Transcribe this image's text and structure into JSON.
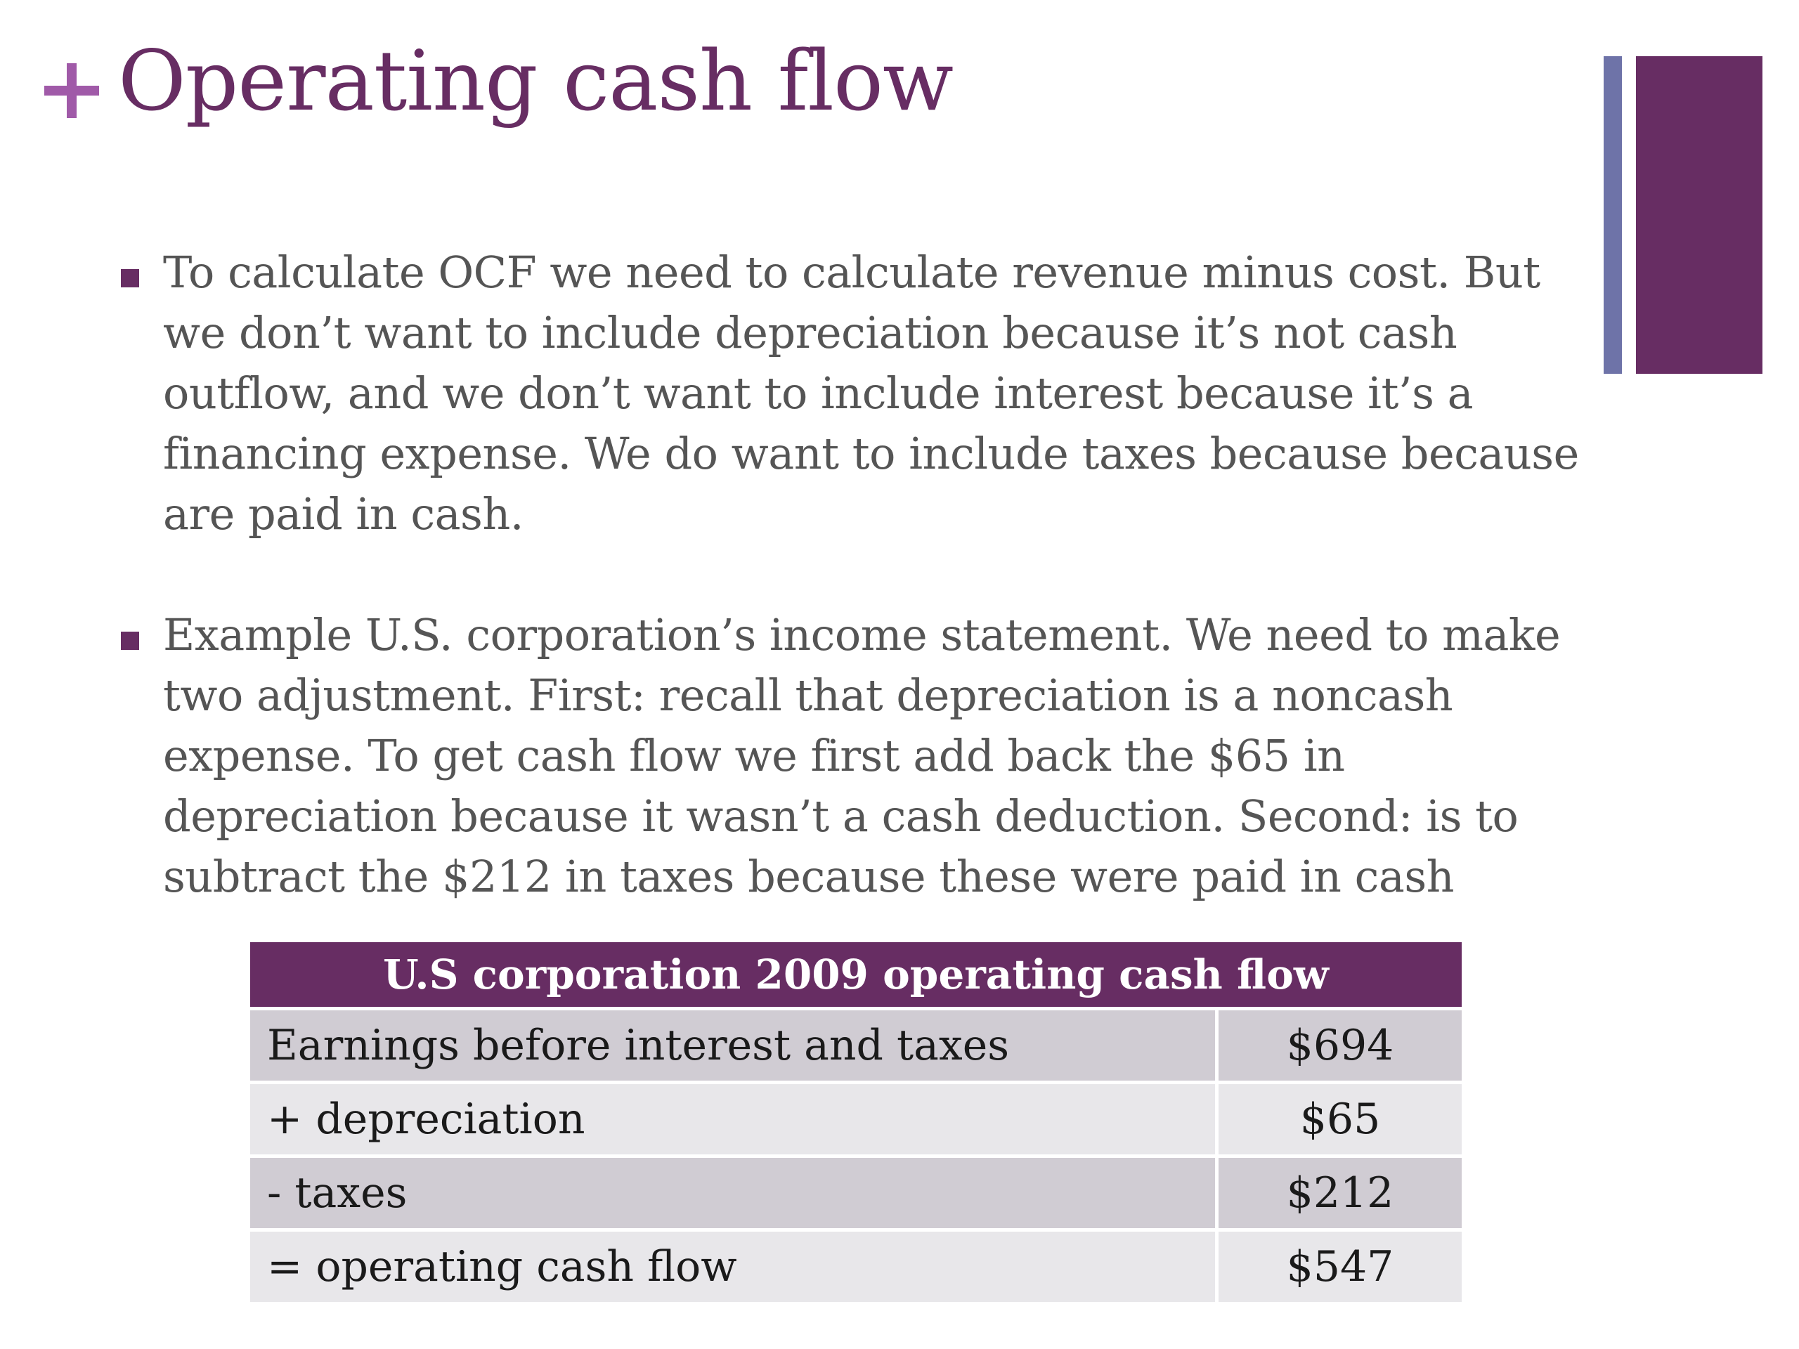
{
  "slide": {
    "title": "Operating cash flow",
    "bullets": [
      "To calculate OCF we need to calculate revenue minus cost. But we don’t want to include depreciation because it’s not cash outflow, and we don’t want to include interest because it’s a financing expense. We do want to include taxes because because are paid in cash.",
      "Example U.S. corporation’s income statement. We need to make two adjustment. First: recall that depreciation is a noncash expense. To get cash flow we first add back the $65 in depreciation because it wasn’t a cash deduction. Second: is to subtract the $212 in taxes because these were paid in cash"
    ]
  },
  "table": {
    "header": "U.S corporation 2009 operating cash flow",
    "rows": [
      {
        "label": "Earnings before interest and taxes",
        "value": "$694"
      },
      {
        "label": "+ depreciation",
        "value": "$65"
      },
      {
        "label": "- taxes",
        "value": "$212"
      },
      {
        "label": "= operating cash flow",
        "value": "$547"
      }
    ]
  },
  "colors": {
    "accent_purple": "#672d63",
    "plus_mark": "#a05aa8",
    "side_bar_blue": "#6e73a8",
    "row_dark": "#d0ccd3",
    "row_light": "#e8e7ea"
  },
  "icons": {
    "title_mark": "plus-icon",
    "bullet_mark": "square-bullet-icon"
  }
}
